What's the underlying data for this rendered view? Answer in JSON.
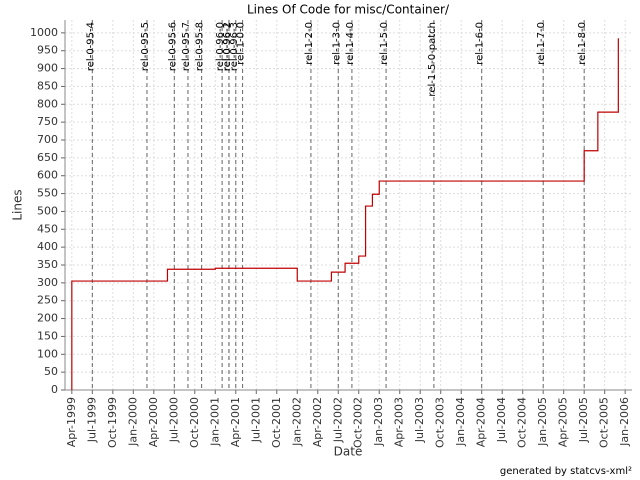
{
  "chart_data": {
    "type": "step-line",
    "step": "post",
    "title": "Lines Of Code for misc/Container/",
    "x_label": "Date",
    "y_label": "Lines",
    "footer": "generated by statcvs-xml²",
    "series": [
      {
        "name": "Lines",
        "color": "#c00000",
        "x": [
          "1999-04",
          "1999-04",
          "2000-06",
          "2001-01",
          "2002-01",
          "2002-06",
          "2002-08",
          "2002-10",
          "2002-11",
          "2002-11",
          "2002-12",
          "2003-01",
          "2005-07",
          "2005-09",
          "2005-12",
          "2005-12"
        ],
        "values": [
          0,
          305,
          338,
          341,
          305,
          330,
          355,
          375,
          410,
          515,
          548,
          585,
          670,
          778,
          970,
          985
        ]
      }
    ],
    "markers": {
      "color": "#666666",
      "x": [
        "1999-07",
        "2000-03",
        "2000-07",
        "2000-09",
        "2000-11",
        "2001-02",
        "2001-03",
        "2001-03",
        "2001-04",
        "2001-05",
        "2002-03",
        "2002-07",
        "2002-09",
        "2003-02",
        "2003-09",
        "2004-04",
        "2005-01",
        "2005-07"
      ],
      "labels": [
        "rel-0-95-4",
        "rel-0-95-5",
        "rel-0-95-6",
        "rel-0-95-7",
        "rel-0-95-8",
        "rel-0-96-0",
        "rel-0-96-1",
        "rel-0-96-2",
        "rel-0-96-3",
        "rel-1-0-0",
        "rel-1-2-0",
        "rel-1-3-0",
        "rel-1-4-0",
        "rel-1-5-0",
        "rel-1-5-0-patch",
        "rel-1-6-0",
        "rel-1-7-0",
        "rel-1-8-0"
      ]
    },
    "xlim": [
      "1999-03",
      "2006-02"
    ],
    "xticks": [
      {
        "value": "1999-04",
        "label": "Apr-1999"
      },
      {
        "value": "1999-07",
        "label": "Jul-1999"
      },
      {
        "value": "1999-10",
        "label": "Oct-1999"
      },
      {
        "value": "2000-01",
        "label": "Jan-2000"
      },
      {
        "value": "2000-04",
        "label": "Apr-2000"
      },
      {
        "value": "2000-07",
        "label": "Jul-2000"
      },
      {
        "value": "2000-10",
        "label": "Oct-2000"
      },
      {
        "value": "2001-01",
        "label": "Jan-2001"
      },
      {
        "value": "2001-04",
        "label": "Apr-2001"
      },
      {
        "value": "2001-07",
        "label": "Jul-2001"
      },
      {
        "value": "2001-10",
        "label": "Oct-2001"
      },
      {
        "value": "2002-01",
        "label": "Jan-2002"
      },
      {
        "value": "2002-04",
        "label": "Apr-2002"
      },
      {
        "value": "2002-07",
        "label": "Jul-2002"
      },
      {
        "value": "2002-10",
        "label": "Oct-2002"
      },
      {
        "value": "2003-01",
        "label": "Jan-2003"
      },
      {
        "value": "2003-04",
        "label": "Apr-2003"
      },
      {
        "value": "2003-07",
        "label": "Jul-2003"
      },
      {
        "value": "2003-10",
        "label": "Oct-2003"
      },
      {
        "value": "2004-01",
        "label": "Jan-2004"
      },
      {
        "value": "2004-04",
        "label": "Apr-2004"
      },
      {
        "value": "2004-07",
        "label": "Jul-2004"
      },
      {
        "value": "2004-10",
        "label": "Oct-2004"
      },
      {
        "value": "2005-01",
        "label": "Jan-2005"
      },
      {
        "value": "2005-04",
        "label": "Apr-2005"
      },
      {
        "value": "2005-07",
        "label": "Jul-2005"
      },
      {
        "value": "2005-10",
        "label": "Oct-2005"
      },
      {
        "value": "2006-01",
        "label": "Jan-2006"
      }
    ],
    "ylim": [
      0,
      1036
    ],
    "yticks": [
      0,
      50,
      100,
      150,
      200,
      250,
      300,
      350,
      400,
      450,
      500,
      550,
      600,
      650,
      700,
      750,
      800,
      850,
      900,
      950,
      1000
    ],
    "grid": true
  }
}
